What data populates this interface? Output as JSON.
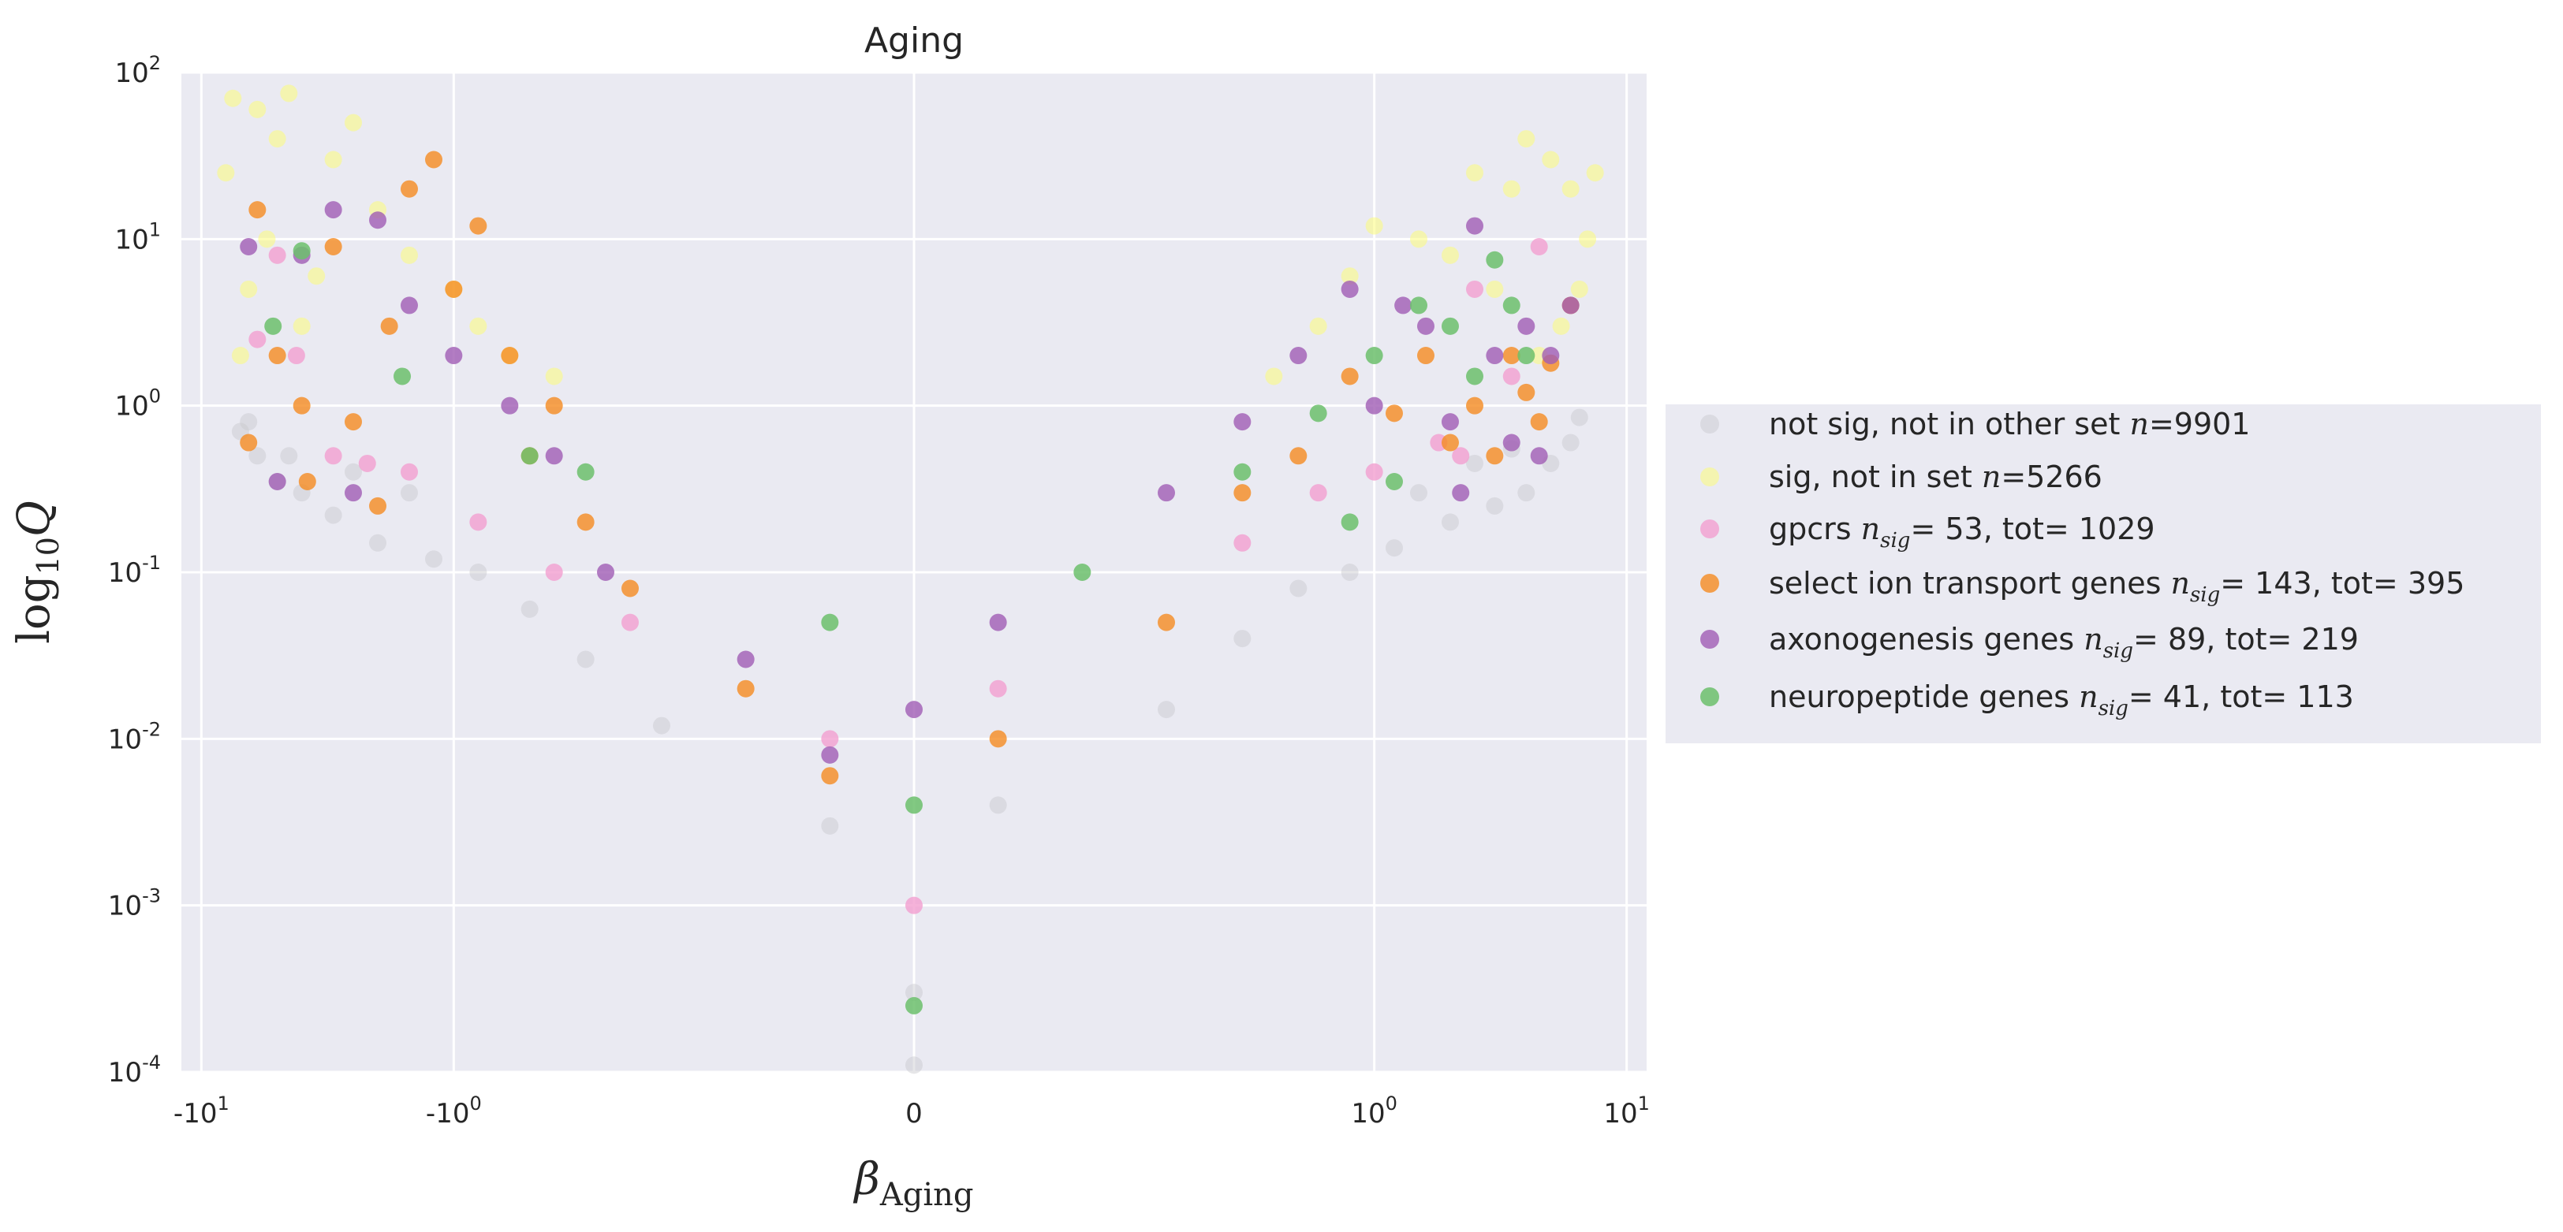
{
  "chart_data": {
    "type": "scatter",
    "title": "Aging",
    "xlabel": {
      "symbol": "β",
      "subscript": "Aging"
    },
    "ylabel": {
      "prefix": "log",
      "subscript": "10",
      "symbol": "Q"
    },
    "x_scale": "symlog",
    "y_scale": "log",
    "xlim": [
      -12,
      12
    ],
    "ylim": [
      0.0001,
      100
    ],
    "grid": true,
    "legend_position": "outside-right",
    "x_ticks": [
      {
        "value": -10,
        "base": "-10",
        "exp": "1"
      },
      {
        "value": -1,
        "base": "-10",
        "exp": "0"
      },
      {
        "value": 0,
        "base": "0",
        "exp": ""
      },
      {
        "value": 1,
        "base": "10",
        "exp": "0"
      },
      {
        "value": 10,
        "base": "10",
        "exp": "1"
      }
    ],
    "y_ticks": [
      {
        "value": 0.0001,
        "base": "10",
        "exp": "-4"
      },
      {
        "value": 0.001,
        "base": "10",
        "exp": "-3"
      },
      {
        "value": 0.01,
        "base": "10",
        "exp": "-2"
      },
      {
        "value": 0.1,
        "base": "10",
        "exp": "-1"
      },
      {
        "value": 1,
        "base": "10",
        "exp": "0"
      },
      {
        "value": 10,
        "base": "10",
        "exp": "1"
      },
      {
        "value": 100,
        "base": "10",
        "exp": "2"
      }
    ],
    "series": [
      {
        "name": "not sig, not in other set",
        "stat_symbol": "n",
        "stat_text": "=9901",
        "color": "#c8c8cc",
        "alpha": 0.45,
        "points": [
          [
            -7,
            0.7
          ],
          [
            -6,
            0.5
          ],
          [
            -5,
            0.35
          ],
          [
            -4,
            0.3
          ],
          [
            -3,
            0.22
          ],
          [
            -2,
            0.15
          ],
          [
            -1.2,
            0.12
          ],
          [
            -0.8,
            0.1
          ],
          [
            -0.5,
            0.06
          ],
          [
            -0.3,
            0.03
          ],
          [
            -0.15,
            0.012
          ],
          [
            -0.05,
            0.003
          ],
          [
            0,
            0.00011
          ],
          [
            0,
            0.0003
          ],
          [
            0.05,
            0.004
          ],
          [
            0.15,
            0.015
          ],
          [
            0.3,
            0.04
          ],
          [
            0.5,
            0.08
          ],
          [
            0.8,
            0.1
          ],
          [
            1.2,
            0.14
          ],
          [
            2,
            0.2
          ],
          [
            3,
            0.25
          ],
          [
            4,
            0.3
          ],
          [
            5,
            0.45
          ],
          [
            6,
            0.6
          ],
          [
            -4.5,
            0.5
          ],
          [
            -2.5,
            0.4
          ],
          [
            -1.5,
            0.3
          ],
          [
            1.5,
            0.3
          ],
          [
            2.5,
            0.45
          ],
          [
            3.5,
            0.55
          ],
          [
            -6.5,
            0.8
          ],
          [
            6.5,
            0.85
          ]
        ]
      },
      {
        "name": "sig, not in set",
        "stat_symbol": "n",
        "stat_text": "=5266",
        "color": "#fbfb7a",
        "alpha": 0.55,
        "points": [
          [
            -8,
            25
          ],
          [
            -7.5,
            70
          ],
          [
            -6,
            60
          ],
          [
            -5,
            40
          ],
          [
            -4.5,
            75
          ],
          [
            -3,
            30
          ],
          [
            -2.5,
            50
          ],
          [
            -2,
            15
          ],
          [
            -1.5,
            8
          ],
          [
            -1,
            5
          ],
          [
            -0.8,
            3
          ],
          [
            -0.6,
            2
          ],
          [
            -0.4,
            1.5
          ],
          [
            -7,
            2
          ],
          [
            -6.5,
            5
          ],
          [
            -5.5,
            10
          ],
          [
            -4,
            3
          ],
          [
            -3.5,
            6
          ],
          [
            0.4,
            1.5
          ],
          [
            0.6,
            3
          ],
          [
            0.8,
            6
          ],
          [
            1,
            12
          ],
          [
            1.5,
            10
          ],
          [
            2,
            8
          ],
          [
            2.5,
            25
          ],
          [
            3,
            5
          ],
          [
            3.5,
            20
          ],
          [
            4,
            40
          ],
          [
            5,
            30
          ],
          [
            6,
            20
          ],
          [
            7,
            10
          ],
          [
            7.5,
            25
          ],
          [
            6.5,
            5
          ],
          [
            5.5,
            3
          ],
          [
            4.5,
            2
          ]
        ]
      },
      {
        "name": "gpcrs",
        "stat_symbol": "n",
        "stat_sub": "sig",
        "stat_text": "= 53, tot= 1029",
        "color": "#f29fd0",
        "alpha": 0.8,
        "points": [
          [
            -5,
            8
          ],
          [
            -4.2,
            2
          ],
          [
            -3,
            0.5
          ],
          [
            -1.5,
            0.4
          ],
          [
            -0.8,
            0.2
          ],
          [
            -0.4,
            0.1
          ],
          [
            -0.2,
            0.05
          ],
          [
            -0.05,
            0.01
          ],
          [
            0,
            0.001
          ],
          [
            0.05,
            0.02
          ],
          [
            0.3,
            0.15
          ],
          [
            0.6,
            0.3
          ],
          [
            1,
            0.4
          ],
          [
            1.8,
            0.6
          ],
          [
            2.5,
            5
          ],
          [
            3.5,
            1.5
          ],
          [
            4.5,
            9
          ],
          [
            -6,
            2.5
          ],
          [
            -2.2,
            0.45
          ],
          [
            2.2,
            0.5
          ]
        ]
      },
      {
        "name": "select ion transport genes",
        "stat_symbol": "n",
        "stat_sub": "sig",
        "stat_text": "= 143, tot= 395",
        "color": "#f58b20",
        "alpha": 0.8,
        "points": [
          [
            -6,
            15
          ],
          [
            -5,
            2
          ],
          [
            -4,
            1
          ],
          [
            -3,
            9
          ],
          [
            -2.5,
            0.8
          ],
          [
            -1.8,
            3
          ],
          [
            -1.5,
            20
          ],
          [
            -1.2,
            30
          ],
          [
            -1,
            5
          ],
          [
            -0.8,
            12
          ],
          [
            -0.6,
            2
          ],
          [
            -0.5,
            0.5
          ],
          [
            -0.4,
            1
          ],
          [
            -0.3,
            0.2
          ],
          [
            -0.2,
            0.08
          ],
          [
            -0.1,
            0.02
          ],
          [
            -0.05,
            0.006
          ],
          [
            0.05,
            0.01
          ],
          [
            0.15,
            0.05
          ],
          [
            0.3,
            0.3
          ],
          [
            0.5,
            0.5
          ],
          [
            0.8,
            1.5
          ],
          [
            1.2,
            0.9
          ],
          [
            1.6,
            2
          ],
          [
            2,
            0.6
          ],
          [
            2.5,
            1
          ],
          [
            3,
            0.5
          ],
          [
            3.5,
            2
          ],
          [
            4,
            1.2
          ],
          [
            4.5,
            0.8
          ],
          [
            5,
            1.8
          ],
          [
            6,
            4
          ],
          [
            -6.5,
            0.6
          ],
          [
            -3.8,
            0.35
          ],
          [
            -2,
            0.25
          ]
        ]
      },
      {
        "name": "axonogenesis genes",
        "stat_symbol": "n",
        "stat_sub": "sig",
        "stat_text": "= 89, tot= 219",
        "color": "#a05cb4",
        "alpha": 0.8,
        "points": [
          [
            -6.5,
            9
          ],
          [
            -4,
            8
          ],
          [
            -3,
            15
          ],
          [
            -2,
            13
          ],
          [
            -1.5,
            4
          ],
          [
            -1,
            2
          ],
          [
            -0.6,
            1
          ],
          [
            -0.4,
            0.5
          ],
          [
            -0.25,
            0.1
          ],
          [
            -0.1,
            0.03
          ],
          [
            -0.05,
            0.008
          ],
          [
            0,
            0.015
          ],
          [
            0.05,
            0.05
          ],
          [
            0.15,
            0.3
          ],
          [
            0.3,
            0.8
          ],
          [
            0.5,
            2
          ],
          [
            0.8,
            5
          ],
          [
            1,
            1
          ],
          [
            1.3,
            4
          ],
          [
            1.6,
            3
          ],
          [
            2,
            0.8
          ],
          [
            2.5,
            12
          ],
          [
            3,
            2
          ],
          [
            3.5,
            0.6
          ],
          [
            4,
            3
          ],
          [
            4.5,
            0.5
          ],
          [
            5,
            2
          ],
          [
            6,
            4
          ],
          [
            -2.5,
            0.3
          ],
          [
            -5,
            0.35
          ],
          [
            2.2,
            0.3
          ]
        ]
      },
      {
        "name": "neuropeptide genes",
        "stat_symbol": "n",
        "stat_sub": "sig",
        "stat_text": "= 41, tot= 113",
        "color": "#6cbf6c",
        "alpha": 0.85,
        "points": [
          [
            -5.2,
            3
          ],
          [
            -4,
            8.5
          ],
          [
            -1.6,
            1.5
          ],
          [
            -0.5,
            0.5
          ],
          [
            -0.3,
            0.4
          ],
          [
            -0.05,
            0.05
          ],
          [
            0,
            0.00025
          ],
          [
            0,
            0.004
          ],
          [
            0.1,
            0.1
          ],
          [
            0.3,
            0.4
          ],
          [
            0.6,
            0.9
          ],
          [
            1,
            2
          ],
          [
            1.5,
            4
          ],
          [
            2,
            3
          ],
          [
            2.5,
            1.5
          ],
          [
            3,
            7.5
          ],
          [
            3.5,
            4
          ],
          [
            4,
            2
          ],
          [
            1.2,
            0.35
          ],
          [
            0.8,
            0.2
          ]
        ]
      }
    ]
  }
}
